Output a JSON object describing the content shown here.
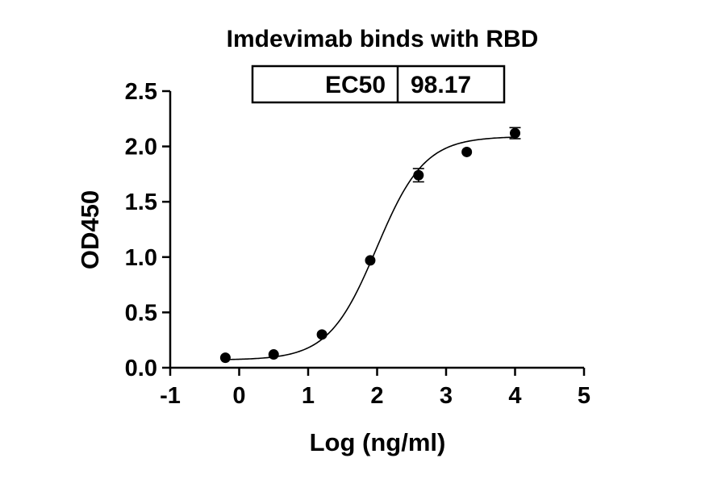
{
  "chart_data": {
    "type": "scatter",
    "title": "Imdevimab binds with RBD",
    "xlabel": "Log (ng/ml)",
    "ylabel": "OD450",
    "xlim": [
      -1,
      5
    ],
    "ylim": [
      0,
      2.5
    ],
    "x_ticks": [
      "-1",
      "0",
      "1",
      "2",
      "3",
      "4",
      "5"
    ],
    "y_ticks": [
      "0.0",
      "0.5",
      "1.0",
      "1.5",
      "2.0",
      "2.5"
    ],
    "points": [
      {
        "x": -0.2,
        "y": 0.09,
        "err": 0.0
      },
      {
        "x": 0.5,
        "y": 0.12,
        "err": 0.0
      },
      {
        "x": 1.2,
        "y": 0.3,
        "err": 0.0
      },
      {
        "x": 1.9,
        "y": 0.97,
        "err": 0.0
      },
      {
        "x": 2.6,
        "y": 1.74,
        "err": 0.06
      },
      {
        "x": 3.3,
        "y": 1.95,
        "err": 0.0
      },
      {
        "x": 4.0,
        "y": 2.12,
        "err": 0.05
      }
    ],
    "fit": {
      "bottom": 0.07,
      "top": 2.09,
      "log_ec50": 1.992,
      "hill": 1.25
    },
    "table": {
      "label": "EC50",
      "value": "98.17"
    },
    "grid": false,
    "legend": "none"
  }
}
